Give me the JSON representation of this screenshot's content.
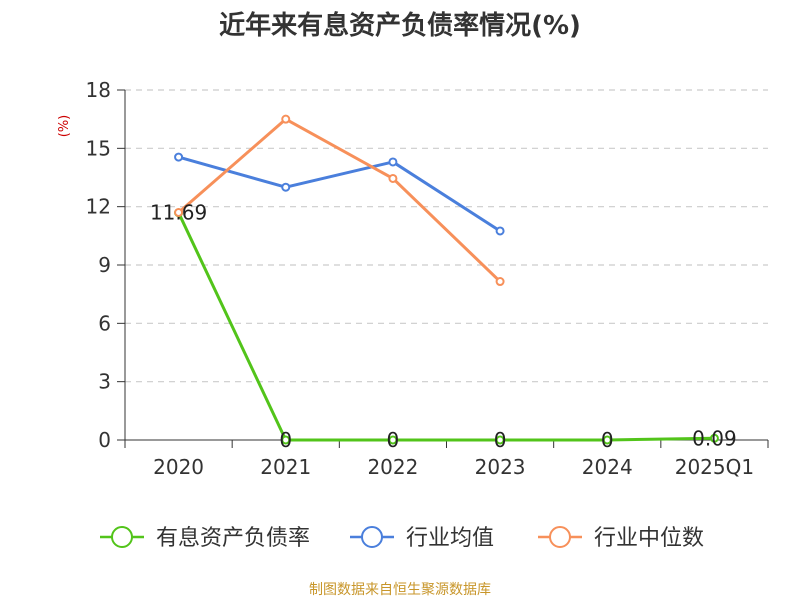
{
  "chart_data": {
    "type": "line",
    "title": "近年来有息资产负债率情况(%)",
    "ylabel": "(%)",
    "xlabel": "",
    "categories": [
      "2020",
      "2021",
      "2022",
      "2023",
      "2024",
      "2025Q1"
    ],
    "ylim": [
      0,
      18
    ],
    "yticks": [
      0,
      3,
      6,
      9,
      12,
      15,
      18
    ],
    "grid": true,
    "legend_position": "bottom",
    "series": [
      {
        "name": "有息资产负债率",
        "color": "#52c41a",
        "values": [
          11.69,
          0,
          0,
          0,
          0,
          0.09
        ],
        "labels": [
          "11.69",
          "0",
          "0",
          "0",
          "0",
          "0.09"
        ]
      },
      {
        "name": "行业均值",
        "color": "#4a7fdc",
        "values": [
          14.55,
          13.0,
          14.3,
          10.75,
          null,
          null
        ]
      },
      {
        "name": "行业中位数",
        "color": "#f7905a",
        "values": [
          11.7,
          16.5,
          13.45,
          8.15,
          null,
          null
        ]
      }
    ]
  },
  "source": "制图数据来自恒生聚源数据库",
  "colors": {
    "ylabel": "#cc0000",
    "source": "#c8962a",
    "axis": "#333333",
    "grid": "#cccccc"
  }
}
